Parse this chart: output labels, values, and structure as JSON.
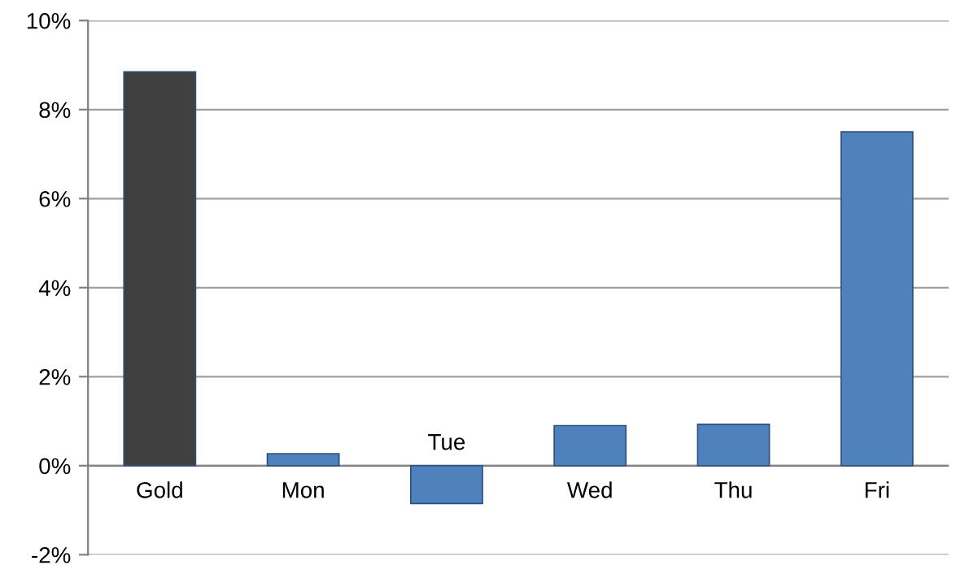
{
  "chart_data": {
    "type": "bar",
    "categories": [
      "Gold",
      "Mon",
      "Tue",
      "Wed",
      "Thu",
      "Fri"
    ],
    "values": [
      8.85,
      0.27,
      -0.85,
      0.9,
      0.93,
      7.5
    ],
    "colors": [
      "#404040",
      "#4f81bd",
      "#4f81bd",
      "#4f81bd",
      "#4f81bd",
      "#4f81bd"
    ],
    "ylim": [
      -2,
      10
    ],
    "yticks": [
      {
        "value": -2,
        "label": "-2%"
      },
      {
        "value": 0,
        "label": "0%"
      },
      {
        "value": 2,
        "label": "2%"
      },
      {
        "value": 4,
        "label": "4%"
      },
      {
        "value": 6,
        "label": "6%"
      },
      {
        "value": 8,
        "label": "8%"
      },
      {
        "value": 10,
        "label": "10%"
      }
    ],
    "grid": "y"
  }
}
